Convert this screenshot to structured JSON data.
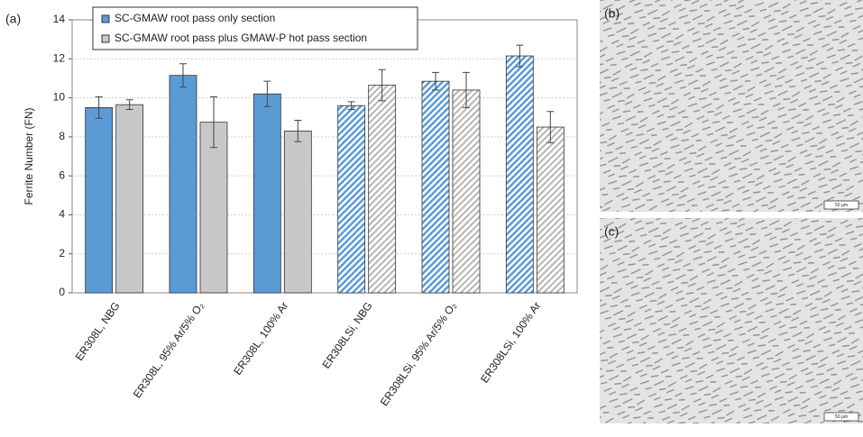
{
  "chart_data": {
    "type": "bar",
    "panel_label": "(a)",
    "y_label": "Ferrite Number (FN)",
    "categories": [
      "ER308L, NBG",
      "ER308L, 95% Ar/5% O₂",
      "ER308L, 100% Ar",
      "ER308LSi, NBG",
      "ER308LSi, 95% Ar/5% O₂",
      "ER308LSi, 100% Ar"
    ],
    "hatch": [
      false,
      false,
      false,
      true,
      true,
      true
    ],
    "series": [
      {
        "name": "SC-GMAW root pass only section",
        "color": "#5b9bd5",
        "values": [
          9.5,
          11.15,
          10.2,
          9.6,
          10.85,
          12.15
        ],
        "errors": [
          0.55,
          0.6,
          0.65,
          0.2,
          0.45,
          0.55
        ]
      },
      {
        "name": "SC-GMAW root pass plus GMAW-P hot pass section",
        "color": "#c8c8c8",
        "values": [
          9.65,
          8.75,
          8.3,
          10.65,
          10.4,
          8.5
        ],
        "errors": [
          0.25,
          1.3,
          0.55,
          0.8,
          0.9,
          0.8
        ]
      }
    ],
    "ylim": [
      0,
      14
    ],
    "yticks": [
      0,
      2,
      4,
      6,
      8,
      10,
      12,
      14
    ],
    "grid": true,
    "legend": "top-left"
  },
  "micrographs": [
    {
      "label": "(b)",
      "scale_bar": "50 µm"
    },
    {
      "label": "(c)",
      "scale_bar": "50 µm"
    }
  ]
}
